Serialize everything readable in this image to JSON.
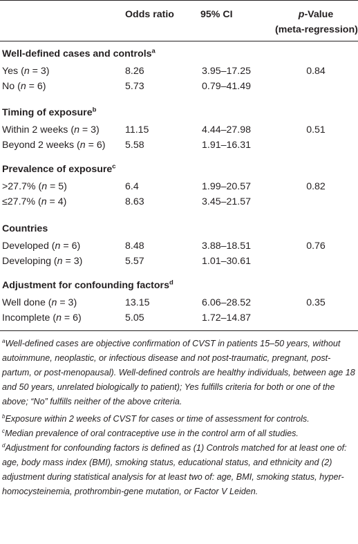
{
  "header": {
    "label_blank": "",
    "odds_ratio": "Odds ratio",
    "ci": "95% CI",
    "pvalue_line1": "p-Value",
    "pvalue_line2": "(meta-regression)"
  },
  "sections": [
    {
      "title": "Well-defined cases and controls",
      "sup": "a",
      "rows": [
        {
          "label": "Yes (n = 3)",
          "odds": "8.26",
          "ci": "3.95–17.25",
          "p": "0.84"
        },
        {
          "label": "No (n = 6)",
          "odds": "5.73",
          "ci": "0.79–41.49",
          "p": ""
        }
      ]
    },
    {
      "title": "Timing of exposure",
      "sup": "b",
      "rows": [
        {
          "label": "Within 2 weeks (n = 3)",
          "odds": "11.15",
          "ci": "4.44–27.98",
          "p": "0.51"
        },
        {
          "label": "Beyond 2 weeks (n = 6)",
          "odds": "5.58",
          "ci": "1.91–16.31",
          "p": ""
        }
      ]
    },
    {
      "title": "Prevalence of exposure",
      "sup": "c",
      "rows": [
        {
          "label": ">27.7% (n = 5)",
          "odds": "6.4",
          "ci": "1.99–20.57",
          "p": "0.82"
        },
        {
          "label": "≤27.7% (n = 4)",
          "odds": "8.63",
          "ci": "3.45–21.57",
          "p": ""
        }
      ]
    },
    {
      "title": "Countries",
      "sup": "",
      "rows": [
        {
          "label": "Developed (n = 6)",
          "odds": "8.48",
          "ci": "3.88–18.51",
          "p": "0.76"
        },
        {
          "label": "Developing (n = 3)",
          "odds": "5.57",
          "ci": "1.01–30.61",
          "p": ""
        }
      ]
    },
    {
      "title": "Adjustment for confounding factors",
      "sup": "d",
      "rows": [
        {
          "label": "Well done (n = 3)",
          "odds": "13.15",
          "ci": "6.06–28.52",
          "p": "0.35"
        },
        {
          "label": "Incomplete (n = 6)",
          "odds": "5.05",
          "ci": "1.72–14.87",
          "p": ""
        }
      ]
    }
  ],
  "footnotes": [
    {
      "mark": "a",
      "text": "Well-defined cases are objective confirmation of CVST in patients 15–50 years, without autoimmune, neoplastic, or infectious disease and not post-traumatic, pregnant, post-partum, or post-menopausal). Well-defined controls are healthy individuals, between age 18 and 50 years, unrelated biologically to patient); Yes fulfills criteria for both or one of the above; “No” fulfills neither of the above criteria."
    },
    {
      "mark": "b",
      "text": "Exposure within 2 weeks of CVST for cases or time of assessment for controls."
    },
    {
      "mark": "c",
      "text": "Median prevalence of oral contraceptive use in the control arm of all studies."
    },
    {
      "mark": "d",
      "text": "Adjustment for confounding factors is defined as (1) Controls matched for at least one of: age, body mass index (BMI), smoking status, educational status, and ethnicity and (2) adjustment during statistical analysis for at least two of: age, BMI, smoking status, hyper-homocysteinemia, prothrombin-gene mutation, or Factor V Leiden."
    }
  ]
}
